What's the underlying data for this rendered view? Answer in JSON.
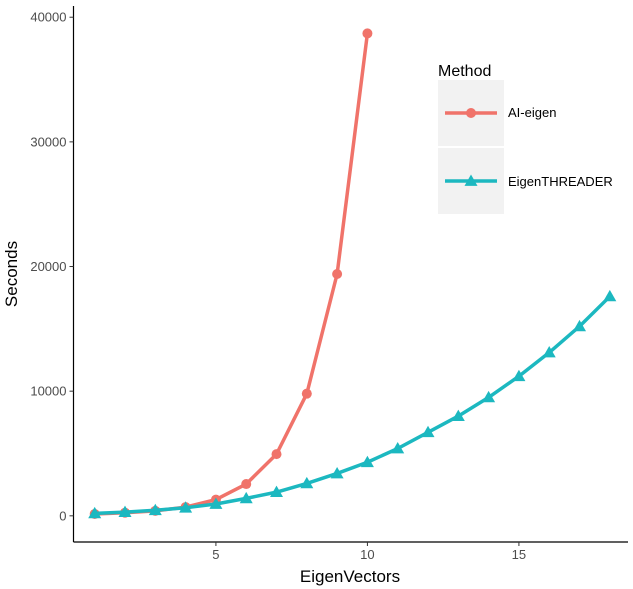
{
  "chart_data": {
    "type": "line",
    "xlabel": "EigenVectors",
    "ylabel": "Seconds",
    "xlim": [
      0.3,
      18.6
    ],
    "ylim": [
      -2100,
      40900
    ],
    "xticks": [
      5,
      10,
      15
    ],
    "yticks": [
      0,
      10000,
      20000,
      30000,
      40000
    ],
    "xtick_labels": [
      "5",
      "10",
      "15"
    ],
    "ytick_labels": [
      "0",
      "10000",
      "20000",
      "30000",
      "40000"
    ],
    "grid": false,
    "legend": {
      "title": "Method",
      "placement": "right"
    },
    "series": [
      {
        "name": "AI-eigen",
        "color": "#f0736a",
        "marker": "circle",
        "x": [
          1,
          2,
          3,
          4,
          5,
          6,
          7,
          8,
          9,
          10
        ],
        "y": [
          150,
          250,
          400,
          700,
          1300,
          2550,
          4950,
          9800,
          19400,
          38700
        ]
      },
      {
        "name": "EigenTHREADER",
        "color": "#1cb8c0",
        "marker": "triangle",
        "x": [
          1,
          2,
          3,
          4,
          5,
          6,
          7,
          8,
          9,
          10,
          11,
          12,
          13,
          14,
          15,
          16,
          17,
          18
        ],
        "y": [
          200,
          300,
          450,
          650,
          950,
          1400,
          1900,
          2600,
          3400,
          4300,
          5400,
          6700,
          8000,
          9500,
          11200,
          13100,
          15200,
          17600
        ]
      }
    ]
  }
}
